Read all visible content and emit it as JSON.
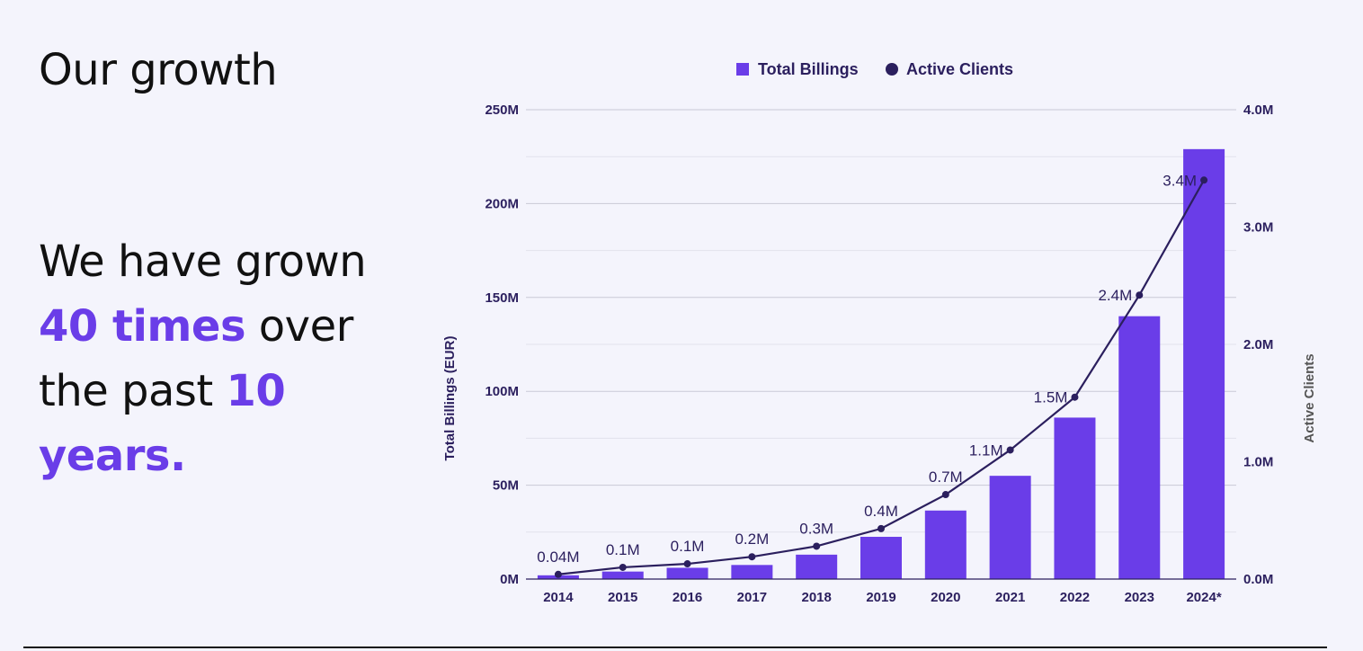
{
  "heading": "Our growth",
  "statement": {
    "part1": "We have grown ",
    "highlight1": "40 times",
    "part2": " over the past ",
    "highlight2": "10 years."
  },
  "colors": {
    "bar": "#6a3de8",
    "line": "#2b1f5e",
    "highlight": "#6a3de8",
    "axis_text": "#2b1f5e",
    "grid": "#d8d8e4"
  },
  "chart_data": {
    "type": "bar",
    "categories": [
      "2014",
      "2015",
      "2016",
      "2017",
      "2018",
      "2019",
      "2020",
      "2021",
      "2022",
      "2023",
      "2024*"
    ],
    "series": [
      {
        "name": "Total Billings",
        "type": "bar",
        "axis": "left",
        "values": [
          2000000,
          4000000,
          6000000,
          7500000,
          13000000,
          22500000,
          36500000,
          55000000,
          86000000,
          140000000,
          229000000
        ]
      },
      {
        "name": "Active Clients",
        "type": "line",
        "axis": "right",
        "values": [
          40000,
          100000,
          130000,
          190000,
          280000,
          430000,
          720000,
          1100000,
          1550000,
          2420000,
          3400000
        ],
        "labels": [
          "0.04M",
          "0.1M",
          "0.1M",
          "0.2M",
          "0.3M",
          "0.4M",
          "0.7M",
          "1.1M",
          "1.5M",
          "2.4M",
          "3.4M"
        ]
      }
    ],
    "ylabel": "Total Billings (EUR)",
    "ylim": [
      0,
      250000000
    ],
    "yticks": [
      "0M",
      "50M",
      "100M",
      "150M",
      "200M",
      "250M"
    ],
    "y2label": "Active Clients",
    "y2lim": [
      0,
      4000000
    ],
    "y2ticks": [
      "0.0M",
      "1.0M",
      "2.0M",
      "3.0M",
      "4.0M"
    ],
    "legend_position": "top-center",
    "grid": true
  }
}
